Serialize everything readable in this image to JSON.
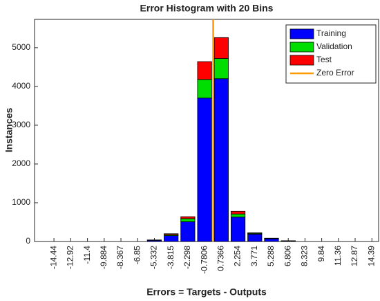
{
  "chart_data": {
    "type": "stacked_histogram",
    "title": "Error Histogram with 20 Bins",
    "xlabel": "Errors = Targets - Outputs",
    "ylabel": "Instances",
    "x": [
      -14.44,
      -12.92,
      -11.4,
      -9.884,
      -8.367,
      -6.85,
      -5.332,
      -3.815,
      -2.298,
      -0.7806,
      0.7366,
      2.254,
      3.771,
      5.288,
      6.806,
      8.323,
      9.84,
      11.36,
      12.87,
      14.39
    ],
    "series": [
      {
        "name": "Training",
        "color": "#0000ff",
        "values": [
          0,
          0,
          0,
          0,
          0,
          0,
          30,
          150,
          510,
          3700,
          4200,
          630,
          190,
          70,
          15,
          0,
          0,
          0,
          0,
          0
        ]
      },
      {
        "name": "Validation",
        "color": "#00dd00",
        "values": [
          0,
          0,
          0,
          0,
          0,
          0,
          5,
          25,
          80,
          480,
          520,
          80,
          20,
          8,
          3,
          0,
          0,
          0,
          0,
          0
        ]
      },
      {
        "name": "Test",
        "color": "#ff0000",
        "values": [
          0,
          0,
          0,
          0,
          0,
          0,
          5,
          25,
          50,
          460,
          540,
          70,
          15,
          7,
          2,
          0,
          0,
          0,
          0,
          0
        ]
      }
    ],
    "zero_line": {
      "name": "Zero Error",
      "color": "#ff9900",
      "x": 0
    },
    "xlim": [
      -16.2,
      15.0
    ],
    "xticks": [
      -14.44,
      -12.92,
      -11.4,
      -9.884,
      -8.367,
      -6.85,
      -5.332,
      -3.815,
      -2.298,
      -0.7806,
      0.7366,
      2.254,
      3.771,
      5.288,
      6.806,
      8.323,
      9.84,
      11.36,
      12.87,
      14.39
    ],
    "ylim": [
      0,
      5730
    ],
    "yticks": [
      0,
      1000,
      2000,
      3000,
      4000,
      5000
    ],
    "legend": "northeast"
  }
}
